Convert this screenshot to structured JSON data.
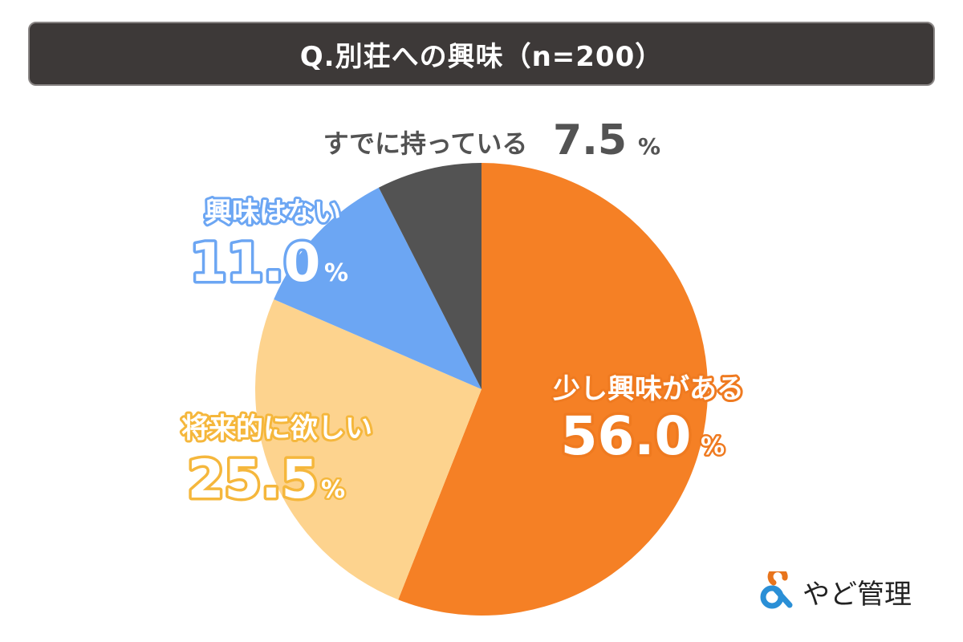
{
  "title": "Q.別荘への興味（n=200）",
  "chart_data": {
    "type": "pie",
    "title": "Q.別荘への興味（n=200）",
    "start": "top",
    "direction": "clockwise",
    "slices": [
      {
        "label": "少し興味がある",
        "value": 56.0,
        "value_text": "56.0",
        "color": "#f58025"
      },
      {
        "label": "将来的に欲しい",
        "value": 25.5,
        "value_text": "25.5",
        "color": "#fdd38e"
      },
      {
        "label": "興味はない",
        "value": 11.0,
        "value_text": "11.0",
        "color": "#6ca6f3"
      },
      {
        "label": "すでに持っている",
        "value": 7.5,
        "value_text": "7.5",
        "color": "#535353"
      }
    ],
    "unit": "%"
  },
  "logo": {
    "text": "やど管理",
    "colors": {
      "orange": "#e8741c",
      "blue": "#2a8fd6"
    }
  }
}
